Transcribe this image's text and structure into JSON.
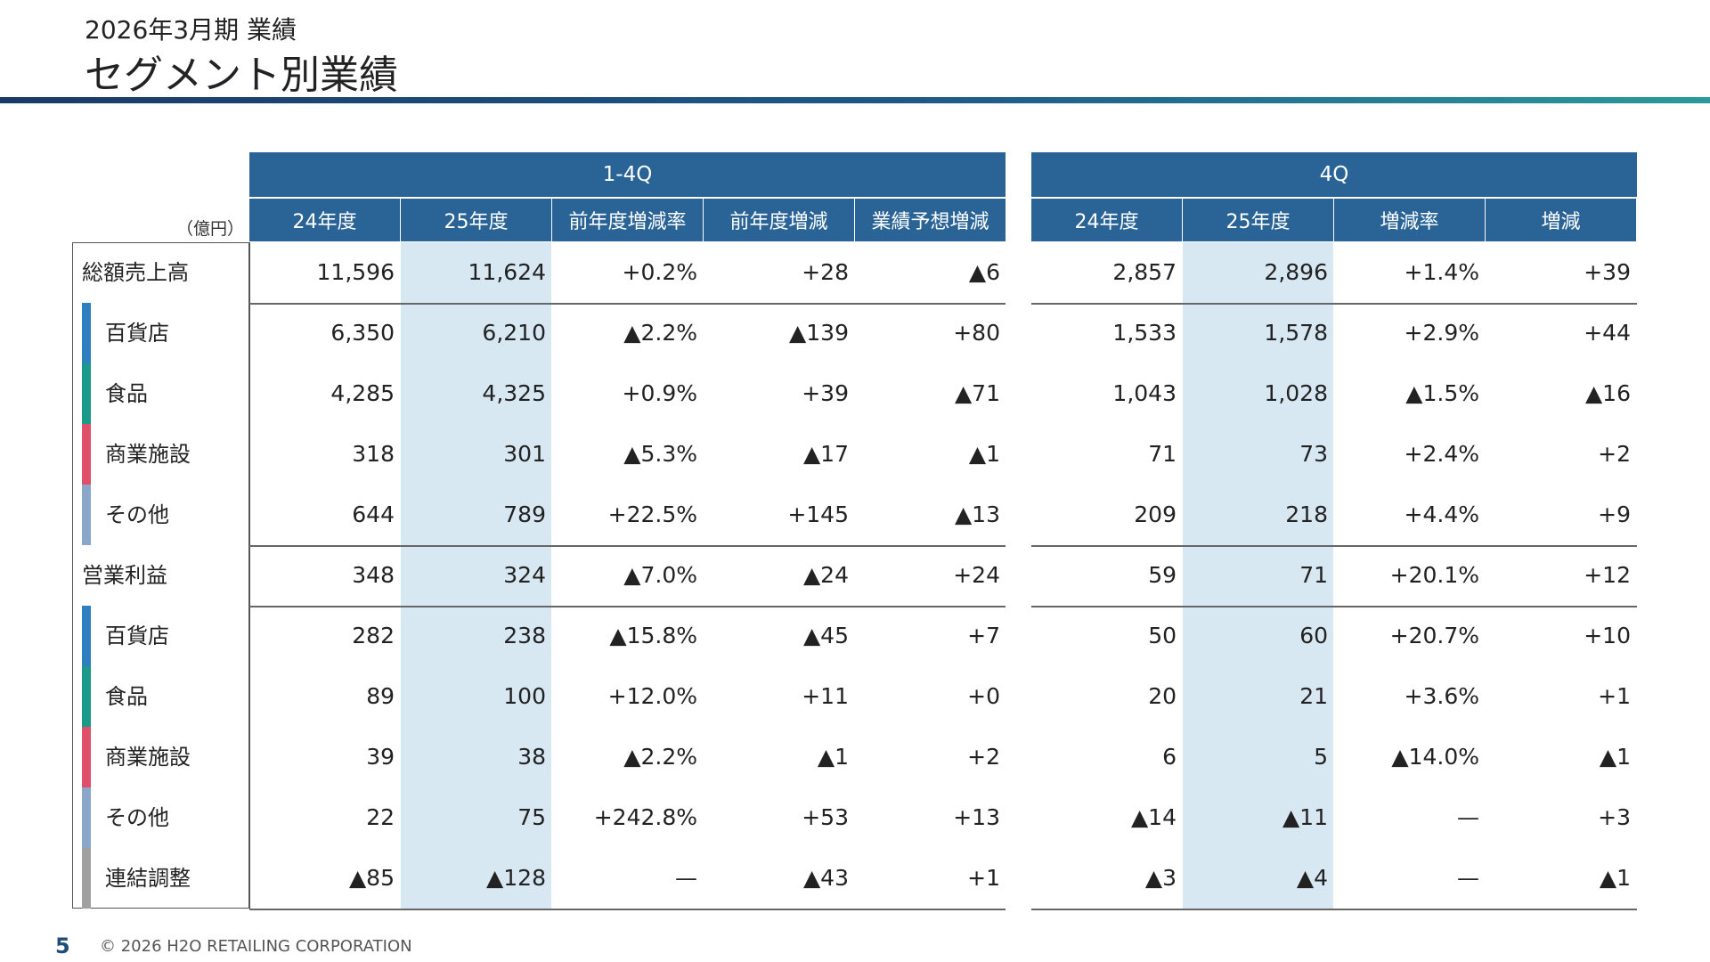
{
  "header": {
    "subtitle": "2026年3月期 業績",
    "title": "セグメント別業績"
  },
  "accent_gradient": [
    "#1a3a66",
    "#2a9a9a"
  ],
  "table": {
    "unit": "（億円）",
    "group_1": {
      "label": "1-4Q",
      "columns": [
        "24年度",
        "25年度",
        "前年度増減率",
        "前年度増減",
        "業績予想増減"
      ]
    },
    "group_2": {
      "label": "4Q",
      "columns": [
        "24年度",
        "25年度",
        "増減率",
        "増減"
      ]
    },
    "rows": [
      {
        "label": "総額売上高",
        "indent": false,
        "color": null,
        "g1": [
          "11,596",
          "11,624",
          "+0.2%",
          "+28",
          "▲6"
        ],
        "g2": [
          "2,857",
          "2,896",
          "+1.4%",
          "+39"
        ]
      },
      {
        "label": "百貨店",
        "indent": true,
        "color": "#2e7fbf",
        "g1": [
          "6,350",
          "6,210",
          "▲2.2%",
          "▲139",
          "+80"
        ],
        "g2": [
          "1,533",
          "1,578",
          "+2.9%",
          "+44"
        ]
      },
      {
        "label": "食品",
        "indent": true,
        "color": "#1b9a8a",
        "g1": [
          "4,285",
          "4,325",
          "+0.9%",
          "+39",
          "▲71"
        ],
        "g2": [
          "1,043",
          "1,028",
          "▲1.5%",
          "▲16"
        ]
      },
      {
        "label": "商業施設",
        "indent": true,
        "color": "#e0506a",
        "g1": [
          "318",
          "301",
          "▲5.3%",
          "▲17",
          "▲1"
        ],
        "g2": [
          "71",
          "73",
          "+2.4%",
          "+2"
        ]
      },
      {
        "label": "その他",
        "indent": true,
        "color": "#8aa6c8",
        "g1": [
          "644",
          "789",
          "+22.5%",
          "+145",
          "▲13"
        ],
        "g2": [
          "209",
          "218",
          "+4.4%",
          "+9"
        ]
      },
      {
        "label": "営業利益",
        "indent": false,
        "color": null,
        "g1": [
          "348",
          "324",
          "▲7.0%",
          "▲24",
          "+24"
        ],
        "g2": [
          "59",
          "71",
          "+20.1%",
          "+12"
        ]
      },
      {
        "label": "百貨店",
        "indent": true,
        "color": "#2e7fbf",
        "g1": [
          "282",
          "238",
          "▲15.8%",
          "▲45",
          "+7"
        ],
        "g2": [
          "50",
          "60",
          "+20.7%",
          "+10"
        ]
      },
      {
        "label": "食品",
        "indent": true,
        "color": "#1b9a8a",
        "g1": [
          "89",
          "100",
          "+12.0%",
          "+11",
          "+0"
        ],
        "g2": [
          "20",
          "21",
          "+3.6%",
          "+1"
        ]
      },
      {
        "label": "商業施設",
        "indent": true,
        "color": "#e0506a",
        "g1": [
          "39",
          "38",
          "▲2.2%",
          "▲1",
          "+2"
        ],
        "g2": [
          "6",
          "5",
          "▲14.0%",
          "▲1"
        ]
      },
      {
        "label": "その他",
        "indent": true,
        "color": "#8aa6c8",
        "g1": [
          "22",
          "75",
          "+242.8%",
          "+53",
          "+13"
        ],
        "g2": [
          "▲14",
          "▲11",
          "—",
          "+3"
        ]
      },
      {
        "label": "連結調整",
        "indent": true,
        "color": "#a0a0a0",
        "g1": [
          "▲85",
          "▲128",
          "—",
          "▲43",
          "+1"
        ],
        "g2": [
          "▲3",
          "▲4",
          "—",
          "▲1"
        ]
      }
    ]
  },
  "footer": {
    "page_number": "5",
    "copyright": "© 2026 H2O RETAILING CORPORATION"
  }
}
